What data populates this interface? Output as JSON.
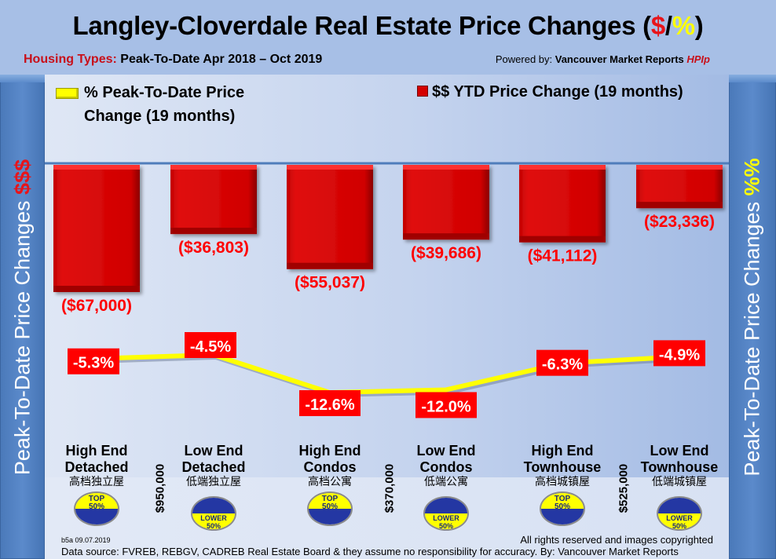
{
  "header": {
    "title_main": "Langley-Cloverdale Real Estate Price Changes (",
    "title_dollar": "$",
    "title_slash": "/",
    "title_pct": "%",
    "title_close": ")",
    "subtitle_label": "Housing Types:",
    "subtitle_period": " Peak-To-Date Apr 2018 – Oct 2019",
    "powered_prefix": "Powered by: ",
    "powered_brand": "Vancouver Market Reports ",
    "powered_hpi": "HPIp"
  },
  "sidebars": {
    "left_text": "Peak-To-Date Price Changes ",
    "left_accent": "$$$",
    "right_text": "Peak-To-Date  Price  Changes  ",
    "right_accent": "%%"
  },
  "legend": {
    "pct_line1": "% Peak-To-Date Price",
    "pct_line2": "Change (19 months)",
    "dollar": "$$ YTD Price Change (19 months)"
  },
  "chart_data": {
    "type": "bar",
    "title": "Langley-Cloverdale Real Estate Price Changes ($/%)",
    "xlabel": "",
    "ylabel": "Peak-To-Date Price Changes",
    "categories": [
      "High End Detached",
      "Low End Detached",
      "High End Condos",
      "Low End Condos",
      "High End Townhouse",
      "Low End Townhouse"
    ],
    "series": [
      {
        "name": "$$ YTD Price Change (19 months)",
        "type": "bar",
        "color": "#d40000",
        "values": [
          -67000,
          -36803,
          -55037,
          -39686,
          -41112,
          -23336
        ],
        "labels": [
          "($67,000)",
          "($36,803)",
          "($55,037)",
          "($39,686)",
          "($41,112)",
          "($23,336)"
        ]
      },
      {
        "name": "% Peak-To-Date Price Change (19 months)",
        "type": "line",
        "color": "#ffff00",
        "values": [
          -5.3,
          -4.5,
          -12.6,
          -12.0,
          -6.3,
          -4.9
        ],
        "labels": [
          "-5.3%",
          "-4.5%",
          "-12.6%",
          "-12.0%",
          "-6.3%",
          "-4.9%"
        ]
      }
    ],
    "ylim_dollar": [
      -70000,
      0
    ],
    "legend_position": "top",
    "grid": false
  },
  "categories": [
    {
      "line1": "High End",
      "line2": "Detached",
      "zh": "高档独立屋",
      "badge": "top"
    },
    {
      "line1": "Low End",
      "line2": "Detached",
      "zh": "低端独立屋",
      "badge": "lower"
    },
    {
      "line1": "High End",
      "line2": "Condos",
      "zh": "高档公寓",
      "badge": "top"
    },
    {
      "line1": "Low End",
      "line2": "Condos",
      "zh": "低端公寓",
      "badge": "lower"
    },
    {
      "line1": "High End",
      "line2": "Townhouse",
      "zh": "高档城镇屋",
      "badge": "top"
    },
    {
      "line1": "Low End",
      "line2": "Townhouse",
      "zh": "低端城镇屋",
      "badge": "lower"
    }
  ],
  "thresholds": [
    "$950,000",
    "$370,000",
    "$525,000"
  ],
  "badges": {
    "top_line1": "TOP",
    "top_line2": "50%",
    "lower_line1": "LOWER",
    "lower_line2": "50%"
  },
  "footer": {
    "version": "b5a 09.07.2019",
    "rights": "All rights reserved and  images copyrighted",
    "source": "Data source: FVREB, REBGV, CADREB Real Estate Board & they assume no responsibility for accuracy. By: Vancouver Market Reports"
  }
}
